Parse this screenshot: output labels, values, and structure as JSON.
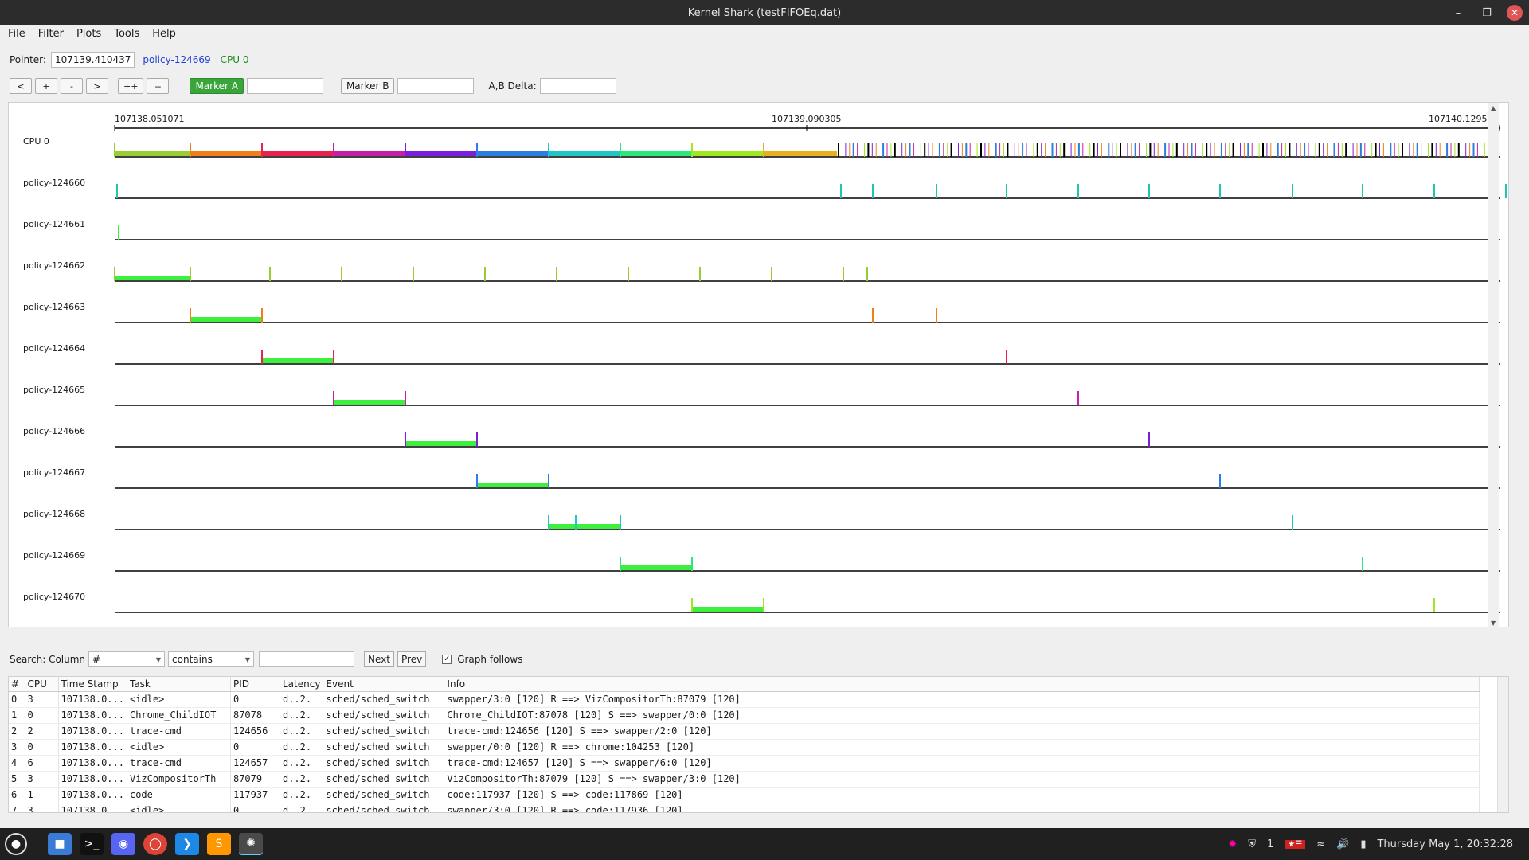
{
  "window": {
    "title": "Kernel Shark (testFIFOEq.dat)"
  },
  "menu": [
    "File",
    "Filter",
    "Plots",
    "Tools",
    "Help"
  ],
  "pointer": {
    "label": "Pointer:",
    "value": "107139.410437",
    "task": "policy-124669",
    "cpu": "CPU 0"
  },
  "nav_buttons": [
    "<",
    "+",
    "-",
    ">",
    "++",
    "--"
  ],
  "markers": {
    "a_label": "Marker A",
    "b_label": "Marker B",
    "delta_label": "A,B Delta:"
  },
  "timeline": {
    "left": "107138.051071",
    "center": "107139.090305",
    "right": "107140.129539"
  },
  "rows": [
    {
      "label": "CPU 0"
    },
    {
      "label": "policy-124660"
    },
    {
      "label": "policy-124661"
    },
    {
      "label": "policy-124662"
    },
    {
      "label": "policy-124663"
    },
    {
      "label": "policy-124664"
    },
    {
      "label": "policy-124665"
    },
    {
      "label": "policy-124666"
    },
    {
      "label": "policy-124667"
    },
    {
      "label": "policy-124668"
    },
    {
      "label": "policy-124669"
    },
    {
      "label": "policy-124670"
    }
  ],
  "search": {
    "label": "Search: Column",
    "column": "#",
    "mode": "contains",
    "next": "Next",
    "prev": "Prev",
    "graph_follows": "Graph follows"
  },
  "table": {
    "headers": [
      "#",
      "CPU",
      "Time Stamp",
      "Task",
      "PID",
      "Latency",
      "Event",
      "Info"
    ],
    "rows": [
      [
        "0",
        "3",
        "107138.0...",
        "<idle>",
        "0",
        "d..2.",
        "sched/sched_switch",
        "swapper/3:0 [120] R ==> VizCompositorTh:87079 [120]"
      ],
      [
        "1",
        "0",
        "107138.0...",
        "Chrome_ChildIOT",
        "87078",
        "d..2.",
        "sched/sched_switch",
        "Chrome_ChildIOT:87078 [120] S ==> swapper/0:0 [120]"
      ],
      [
        "2",
        "2",
        "107138.0...",
        "trace-cmd",
        "124656",
        "d..2.",
        "sched/sched_switch",
        "trace-cmd:124656 [120] S ==> swapper/2:0 [120]"
      ],
      [
        "3",
        "0",
        "107138.0...",
        "<idle>",
        "0",
        "d..2.",
        "sched/sched_switch",
        "swapper/0:0 [120] R ==> chrome:104253 [120]"
      ],
      [
        "4",
        "6",
        "107138.0...",
        "trace-cmd",
        "124657",
        "d..2.",
        "sched/sched_switch",
        "trace-cmd:124657 [120] S ==> swapper/6:0 [120]"
      ],
      [
        "5",
        "3",
        "107138.0...",
        "VizCompositorTh",
        "87079",
        "d..2.",
        "sched/sched_switch",
        "VizCompositorTh:87079 [120] S ==> swapper/3:0 [120]"
      ],
      [
        "6",
        "1",
        "107138.0...",
        "code",
        "117937",
        "d..2.",
        "sched/sched_switch",
        "code:117937 [120] S ==> code:117869 [120]"
      ],
      [
        "7",
        "3",
        "107138.0...",
        "<idle>",
        "0",
        "d..2.",
        "sched/sched_switch",
        "swapper/3:0 [120] R ==> code:117936 [120]"
      ]
    ]
  },
  "taskbar": {
    "datetime": "Thursday May 1, 20:32:28",
    "notif_count": "1"
  },
  "colors": {
    "accent": "#39a53a",
    "task_link": "#1e3fd6",
    "cpu_label": "#1c8a1c",
    "busy_bar": "#3ef03e"
  }
}
